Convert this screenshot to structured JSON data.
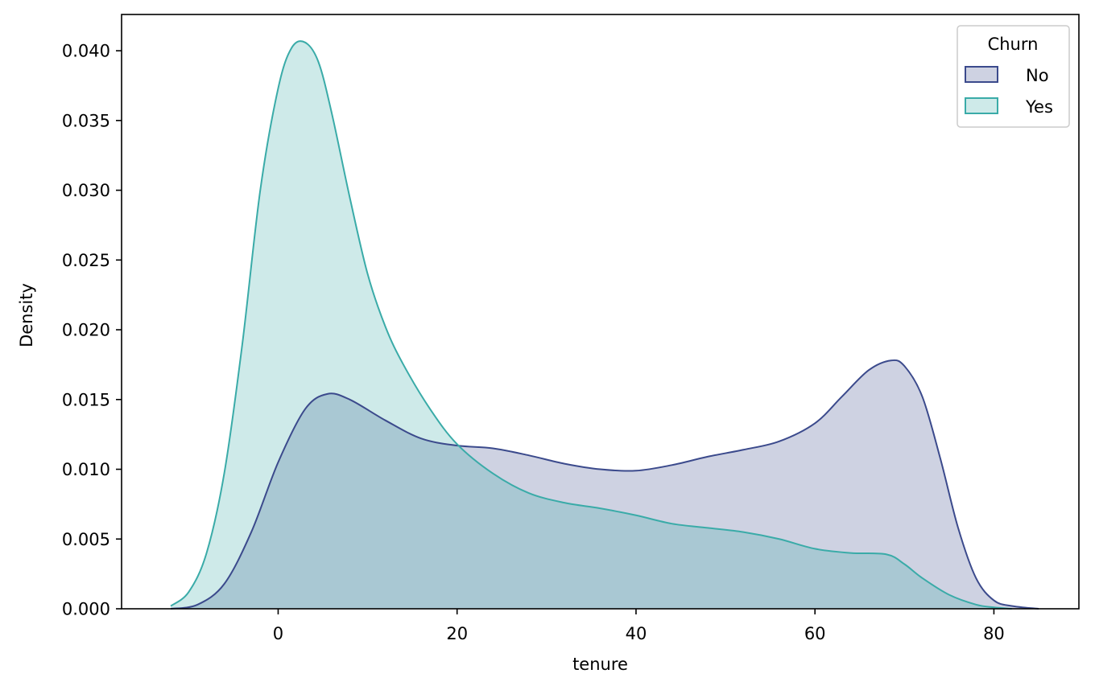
{
  "chart_data": {
    "type": "area",
    "title": "",
    "xlabel": "tenure",
    "ylabel": "Density",
    "xlim": [
      -17.5,
      89.5
    ],
    "ylim": [
      0,
      0.0426
    ],
    "x_ticks": [
      0,
      20,
      40,
      60,
      80
    ],
    "x_tick_labels": [
      "0",
      "20",
      "40",
      "60",
      "80"
    ],
    "y_ticks": [
      0,
      0.005,
      0.01,
      0.015,
      0.02,
      0.025,
      0.03,
      0.035,
      0.04
    ],
    "y_tick_labels": [
      "0.000",
      "0.005",
      "0.010",
      "0.015",
      "0.020",
      "0.025",
      "0.030",
      "0.035",
      "0.040"
    ],
    "grid": false,
    "legend": {
      "title": "Churn",
      "placement": "top-right"
    },
    "series": [
      {
        "name": "No",
        "color": "#3b4a8c",
        "fill": "#3b4a8c",
        "x": [
          -12,
          -9,
          -6,
          -3,
          0,
          3,
          5.5,
          8,
          12,
          16,
          20,
          24,
          28,
          32,
          36,
          40,
          44,
          48,
          52,
          56,
          60,
          63,
          66,
          68.5,
          70,
          72,
          74,
          76,
          78,
          80,
          82,
          85
        ],
        "y": [
          0.0,
          0.0003,
          0.0018,
          0.0055,
          0.0105,
          0.0143,
          0.0154,
          0.015,
          0.0135,
          0.0122,
          0.0117,
          0.0115,
          0.011,
          0.0104,
          0.01,
          0.0099,
          0.0103,
          0.0109,
          0.0114,
          0.012,
          0.0133,
          0.0152,
          0.0171,
          0.0178,
          0.0174,
          0.0152,
          0.0108,
          0.0058,
          0.0022,
          0.0006,
          0.0002,
          0.0
        ]
      },
      {
        "name": "Yes",
        "color": "#3aaba8",
        "fill": "#3aaba8",
        "x": [
          -12,
          -10,
          -8,
          -6,
          -4,
          -2,
          0,
          1.5,
          3,
          4.5,
          6,
          8,
          10,
          12,
          14,
          17,
          20,
          24,
          28,
          32,
          36,
          40,
          44,
          48,
          52,
          56,
          60,
          64,
          68,
          70,
          72,
          75,
          78,
          80,
          82
        ],
        "y": [
          0.0002,
          0.0012,
          0.004,
          0.0098,
          0.019,
          0.03,
          0.0373,
          0.0402,
          0.0406,
          0.0392,
          0.0355,
          0.0295,
          0.024,
          0.0202,
          0.0175,
          0.0143,
          0.0118,
          0.0097,
          0.0083,
          0.0076,
          0.0072,
          0.0067,
          0.0061,
          0.0058,
          0.0055,
          0.005,
          0.0043,
          0.004,
          0.0039,
          0.0032,
          0.0022,
          0.001,
          0.0003,
          0.0001,
          0.0
        ]
      }
    ]
  }
}
